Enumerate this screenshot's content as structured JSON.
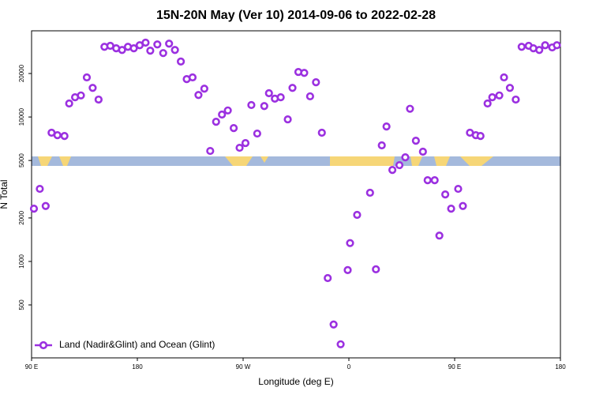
{
  "chart_data": {
    "type": "scatter",
    "title": "15N-20N May (Ver 10)   2014-09-06 to 2022-02-28",
    "xlabel": "Longitude (deg E)",
    "ylabel": "N Total",
    "log_y": true,
    "grid": false,
    "legend": "lower left",
    "xlim": [
      90,
      540
    ],
    "ylim": [
      215,
      39500
    ],
    "xticks": [
      {
        "value": 90,
        "label": "90 E"
      },
      180,
      {
        "value": 270,
        "label": "90 W"
      },
      {
        "value": 360,
        "label": "0"
      },
      {
        "value": 450,
        "label": "90 E"
      },
      {
        "value": 540,
        "label": "180"
      }
    ],
    "yticks": [
      500,
      1000,
      2000,
      5000,
      10000,
      20000
    ],
    "series": [
      {
        "name": "Land (Nadir&Glint) and Ocean (Glint)",
        "color": "#9b30e0",
        "x": [
          92,
          97,
          102,
          107,
          112,
          118,
          122,
          127,
          132,
          137,
          142,
          147,
          152,
          157,
          162,
          167,
          172,
          177,
          182,
          187,
          191,
          197,
          202,
          207,
          212,
          217,
          222,
          227,
          232,
          237,
          242,
          247,
          252,
          257,
          262,
          267,
          272,
          277,
          282,
          288,
          292,
          297,
          302,
          308,
          312,
          317,
          322,
          327,
          332,
          337,
          342,
          347,
          353,
          359,
          361,
          367,
          378,
          383,
          388,
          392,
          397,
          403,
          408,
          412,
          417,
          423,
          427,
          433,
          437,
          442,
          447,
          453,
          457,
          463,
          468,
          472,
          478,
          482,
          488,
          492,
          497,
          502,
          507,
          513,
          517,
          522,
          527,
          533,
          537
        ],
        "values": [
          2320,
          3180,
          2420,
          7780,
          7480,
          7390,
          12400,
          13700,
          14100,
          18800,
          15900,
          13200,
          30600,
          31100,
          29900,
          29100,
          30600,
          29900,
          31400,
          32700,
          28800,
          31800,
          27700,
          32200,
          29100,
          24200,
          18300,
          18800,
          14200,
          15700,
          5820,
          9270,
          10400,
          11100,
          8380,
          6120,
          6600,
          12100,
          7680,
          11900,
          14600,
          13400,
          13700,
          9630,
          15900,
          20500,
          20200,
          13900,
          17400,
          7780,
          767,
          366,
          267,
          871,
          1340,
          2100,
          2990,
          882,
          6360,
          8590,
          4300,
          4640,
          5260,
          11400,
          6850,
          5750,
          3650,
          3650,
          1510,
          2910,
          2320,
          3180,
          2420,
          7780,
          7480,
          7390,
          12400,
          13700,
          14100,
          18800,
          15900,
          13200,
          30600,
          31100,
          29900,
          29100,
          31400,
          30300,
          31400
        ]
      }
    ]
  }
}
